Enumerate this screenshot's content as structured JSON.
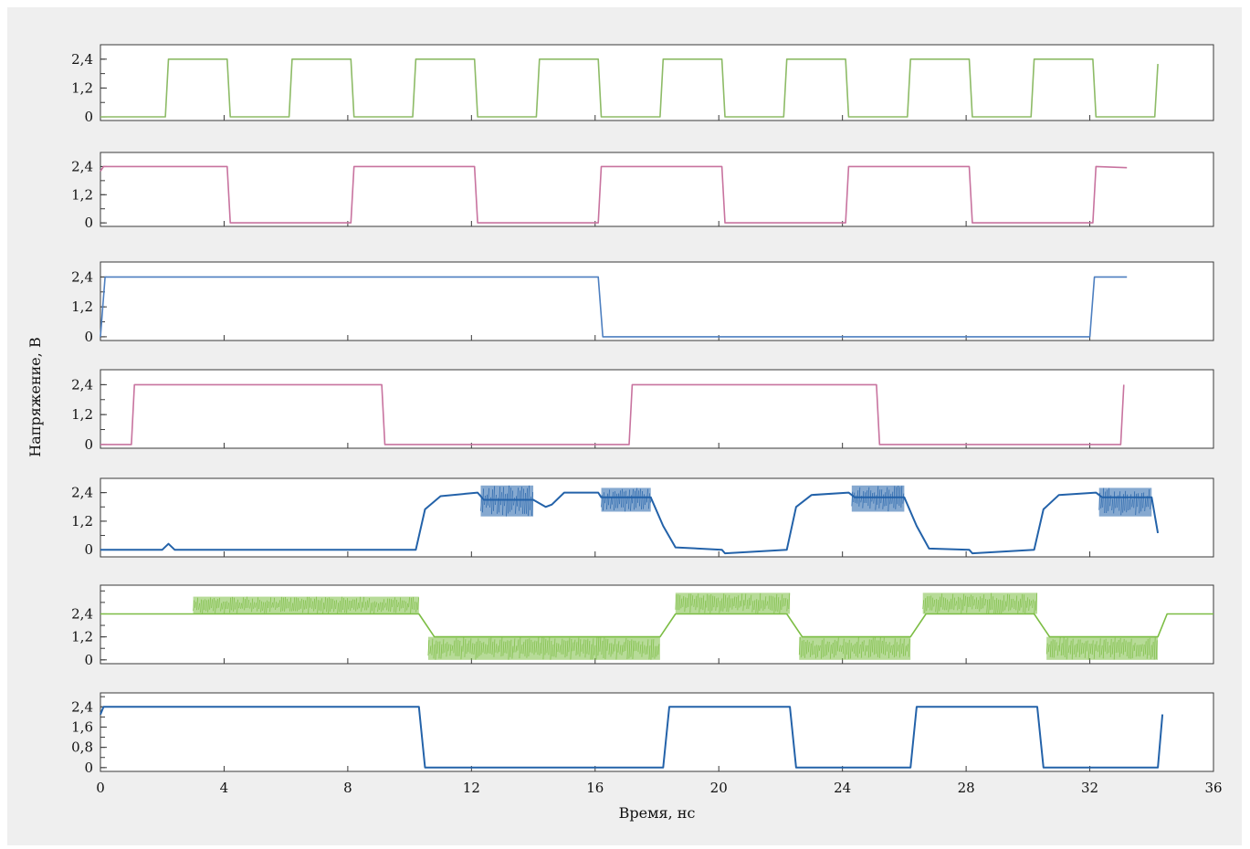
{
  "chart_data": {
    "type": "line",
    "xlabel": "Время, нс",
    "ylabel": "Напряжение, В",
    "xlim": [
      0,
      36
    ],
    "x_ticks": [
      "0",
      "4",
      "8",
      "12",
      "16",
      "20",
      "24",
      "28",
      "32",
      "36"
    ],
    "grid": false,
    "panels": [
      {
        "name": "",
        "color": "#8dbb66",
        "noise": 0,
        "ylim": [
          -0.15,
          3.0
        ],
        "y_ticks": [
          {
            "v": 0,
            "label": "0"
          },
          {
            "v": 1.2,
            "label": "1,2"
          },
          {
            "v": 2.4,
            "label": "2,4"
          }
        ],
        "points": [
          [
            0,
            0
          ],
          [
            2.1,
            0
          ],
          [
            2.2,
            2.4
          ],
          [
            4.1,
            2.4
          ],
          [
            4.2,
            0
          ],
          [
            6.1,
            0
          ],
          [
            6.2,
            2.4
          ],
          [
            8.1,
            2.4
          ],
          [
            8.2,
            0
          ],
          [
            10.1,
            0
          ],
          [
            10.2,
            2.4
          ],
          [
            12.1,
            2.4
          ],
          [
            12.2,
            0
          ],
          [
            14.1,
            0
          ],
          [
            14.2,
            2.4
          ],
          [
            16.1,
            2.4
          ],
          [
            16.2,
            0
          ],
          [
            18.1,
            0
          ],
          [
            18.2,
            2.4
          ],
          [
            20.1,
            2.4
          ],
          [
            20.2,
            0
          ],
          [
            22.1,
            0
          ],
          [
            22.2,
            2.4
          ],
          [
            24.1,
            2.4
          ],
          [
            24.2,
            0
          ],
          [
            26.1,
            0
          ],
          [
            26.2,
            2.4
          ],
          [
            28.1,
            2.4
          ],
          [
            28.2,
            0
          ],
          [
            30.1,
            0
          ],
          [
            30.2,
            2.4
          ],
          [
            32.1,
            2.4
          ],
          [
            32.2,
            0
          ],
          [
            34.1,
            0
          ],
          [
            34.2,
            2.2
          ]
        ],
        "bands": []
      },
      {
        "name": "",
        "color": "#c8739f",
        "noise": 0,
        "ylim": [
          -0.15,
          3.0
        ],
        "y_ticks": [
          {
            "v": 0,
            "label": "0"
          },
          {
            "v": 1.2,
            "label": "1,2"
          },
          {
            "v": 2.4,
            "label": "2,4"
          }
        ],
        "points": [
          [
            0,
            2.2
          ],
          [
            0.1,
            2.4
          ],
          [
            4.1,
            2.4
          ],
          [
            4.2,
            0
          ],
          [
            8.1,
            0
          ],
          [
            8.2,
            2.4
          ],
          [
            12.1,
            2.4
          ],
          [
            12.2,
            0
          ],
          [
            16.1,
            0
          ],
          [
            16.2,
            2.4
          ],
          [
            20.1,
            2.4
          ],
          [
            20.2,
            0
          ],
          [
            24.1,
            0
          ],
          [
            24.2,
            2.4
          ],
          [
            28.1,
            2.4
          ],
          [
            28.2,
            0
          ],
          [
            32.1,
            0
          ],
          [
            32.2,
            2.4
          ],
          [
            33.2,
            2.35
          ]
        ],
        "bands": []
      },
      {
        "name": "",
        "color": "#4d7fc0",
        "noise": 0,
        "ylim": [
          -0.15,
          3.0
        ],
        "y_ticks": [
          {
            "v": 0,
            "label": "0"
          },
          {
            "v": 1.2,
            "label": "1,2"
          },
          {
            "v": 2.4,
            "label": "2,4"
          }
        ],
        "points": [
          [
            0,
            0
          ],
          [
            0.15,
            2.4
          ],
          [
            16.1,
            2.4
          ],
          [
            16.25,
            0
          ],
          [
            32.0,
            0
          ],
          [
            32.15,
            2.4
          ],
          [
            33.2,
            2.4
          ]
        ],
        "bands": []
      },
      {
        "name": "",
        "color": "#c8739f",
        "noise": 0,
        "ylim": [
          -0.15,
          3.0
        ],
        "y_ticks": [
          {
            "v": 0,
            "label": "0"
          },
          {
            "v": 1.2,
            "label": "1,2"
          },
          {
            "v": 2.4,
            "label": "2,4"
          }
        ],
        "points": [
          [
            0,
            0
          ],
          [
            1.0,
            0
          ],
          [
            1.1,
            2.4
          ],
          [
            9.1,
            2.4
          ],
          [
            9.2,
            0
          ],
          [
            17.1,
            0
          ],
          [
            17.2,
            2.4
          ],
          [
            25.1,
            2.4
          ],
          [
            25.2,
            0
          ],
          [
            33.0,
            0
          ],
          [
            33.1,
            2.4
          ]
        ],
        "bands": []
      },
      {
        "name": "",
        "color": "#2362a9",
        "noise": 0.05,
        "ylim": [
          -0.3,
          3.0
        ],
        "y_ticks": [
          {
            "v": 0,
            "label": "0"
          },
          {
            "v": 1.2,
            "label": "1,2"
          },
          {
            "v": 2.4,
            "label": "2,4"
          }
        ],
        "points": [
          [
            0,
            0
          ],
          [
            2.0,
            0
          ],
          [
            2.2,
            0.25
          ],
          [
            2.4,
            0
          ],
          [
            10.2,
            0
          ],
          [
            10.5,
            1.7
          ],
          [
            11.0,
            2.25
          ],
          [
            12.2,
            2.4
          ],
          [
            12.4,
            2.1
          ],
          [
            14.0,
            2.1
          ],
          [
            14.4,
            1.8
          ],
          [
            14.6,
            1.9
          ],
          [
            15.0,
            2.4
          ],
          [
            16.1,
            2.4
          ],
          [
            16.2,
            2.2
          ],
          [
            17.8,
            2.2
          ],
          [
            18.2,
            1.0
          ],
          [
            18.6,
            0.1
          ],
          [
            20.1,
            0
          ],
          [
            20.2,
            -0.15
          ],
          [
            22.2,
            0
          ],
          [
            22.5,
            1.8
          ],
          [
            23.0,
            2.3
          ],
          [
            24.2,
            2.4
          ],
          [
            24.4,
            2.2
          ],
          [
            26.0,
            2.2
          ],
          [
            26.4,
            1.0
          ],
          [
            26.8,
            0.05
          ],
          [
            28.1,
            0
          ],
          [
            28.2,
            -0.15
          ],
          [
            30.2,
            0
          ],
          [
            30.5,
            1.7
          ],
          [
            31.0,
            2.3
          ],
          [
            32.2,
            2.4
          ],
          [
            32.4,
            2.2
          ],
          [
            34.0,
            2.2
          ],
          [
            34.2,
            0.7
          ]
        ],
        "bands": [
          {
            "x": [
              12.3,
              14.0
            ],
            "lo": 1.4,
            "hi": 2.7
          },
          {
            "x": [
              16.2,
              17.8
            ],
            "lo": 1.6,
            "hi": 2.6
          },
          {
            "x": [
              24.3,
              26.0
            ],
            "lo": 1.6,
            "hi": 2.7
          },
          {
            "x": [
              32.3,
              34.0
            ],
            "lo": 1.4,
            "hi": 2.6
          }
        ]
      },
      {
        "name": "",
        "color": "#7cbd44",
        "noise": 0,
        "ylim": [
          -0.2,
          3.9
        ],
        "y_ticks": [
          {
            "v": 0,
            "label": "0"
          },
          {
            "v": 1.2,
            "label": "1,2"
          },
          {
            "v": 2.4,
            "label": "2,4"
          }
        ],
        "points": [
          [
            0,
            2.4
          ],
          [
            3.0,
            2.4
          ],
          [
            10.3,
            2.4
          ],
          [
            10.8,
            1.2
          ],
          [
            18.1,
            1.2
          ],
          [
            18.6,
            2.4
          ],
          [
            22.2,
            2.4
          ],
          [
            22.7,
            1.2
          ],
          [
            26.2,
            1.2
          ],
          [
            26.7,
            2.4
          ],
          [
            30.2,
            2.4
          ],
          [
            30.7,
            1.2
          ],
          [
            34.2,
            1.2
          ],
          [
            34.5,
            2.4
          ],
          [
            36,
            2.4
          ]
        ],
        "bands": [
          {
            "x": [
              3.0,
              10.3
            ],
            "lo": 2.4,
            "hi": 3.3
          },
          {
            "x": [
              10.6,
              18.1
            ],
            "lo": 0,
            "hi": 1.2
          },
          {
            "x": [
              18.6,
              22.3
            ],
            "lo": 2.4,
            "hi": 3.5
          },
          {
            "x": [
              22.6,
              26.2
            ],
            "lo": 0,
            "hi": 1.2
          },
          {
            "x": [
              26.6,
              30.3
            ],
            "lo": 2.4,
            "hi": 3.5
          },
          {
            "x": [
              30.6,
              34.2
            ],
            "lo": 0,
            "hi": 1.2
          }
        ]
      },
      {
        "name": "",
        "color": "#2362a9",
        "noise": 0,
        "ylim": [
          -0.15,
          2.95
        ],
        "y_ticks": [
          {
            "v": 0,
            "label": "0"
          },
          {
            "v": 0.8,
            "label": "0,8"
          },
          {
            "v": 1.6,
            "label": "1,6"
          },
          {
            "v": 2.4,
            "label": "2,4"
          }
        ],
        "points": [
          [
            0,
            2.1
          ],
          [
            0.1,
            2.4
          ],
          [
            10.3,
            2.4
          ],
          [
            10.5,
            0
          ],
          [
            18.2,
            0
          ],
          [
            18.4,
            2.4
          ],
          [
            22.3,
            2.4
          ],
          [
            22.5,
            0
          ],
          [
            26.2,
            0
          ],
          [
            26.4,
            2.4
          ],
          [
            30.3,
            2.4
          ],
          [
            30.5,
            0
          ],
          [
            34.2,
            0
          ],
          [
            34.35,
            2.1
          ]
        ],
        "bands": []
      }
    ]
  }
}
